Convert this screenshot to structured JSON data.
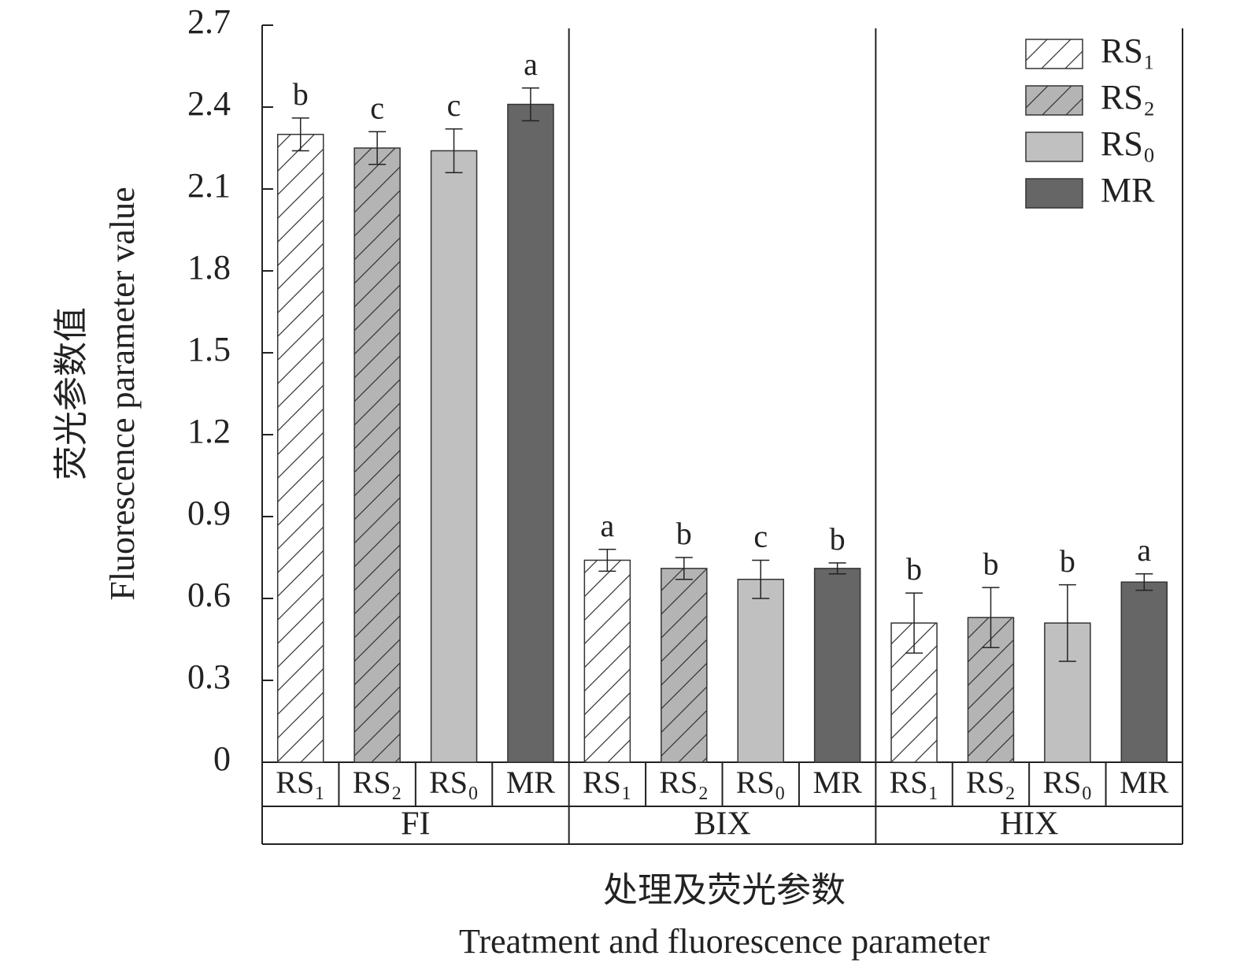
{
  "chart_data": {
    "type": "bar",
    "categories": [
      "FI",
      "BIX",
      "HIX"
    ],
    "series": [
      {
        "name": "RS₁",
        "color": "#ffffff",
        "hatch": true,
        "values": [
          2.3,
          0.74,
          0.51
        ],
        "errors": [
          0.06,
          0.04,
          0.11
        ],
        "letters": [
          "b",
          "a",
          "b"
        ]
      },
      {
        "name": "RS₂",
        "color": "#b4b4b4",
        "hatch": true,
        "values": [
          2.25,
          0.71,
          0.53
        ],
        "errors": [
          0.06,
          0.04,
          0.11
        ],
        "letters": [
          "c",
          "b",
          "b"
        ]
      },
      {
        "name": "RS₀",
        "color": "#c0c0c0",
        "hatch": false,
        "values": [
          2.24,
          0.67,
          0.51
        ],
        "errors": [
          0.08,
          0.07,
          0.14
        ],
        "letters": [
          "c",
          "c",
          "b"
        ]
      },
      {
        "name": "MR",
        "color": "#666666",
        "hatch": false,
        "values": [
          2.41,
          0.71,
          0.66
        ],
        "errors": [
          0.06,
          0.02,
          0.03
        ],
        "letters": [
          "a",
          "b",
          "a"
        ]
      }
    ],
    "y_label": [
      "荧光参数值",
      "Fluorescence parameter value"
    ],
    "x_label": [
      "处理及荧光参数",
      "Treatment and fluorescence parameter"
    ],
    "ylim": [
      0,
      2.7
    ],
    "yticks": [
      0,
      0.3,
      0.6,
      0.9,
      1.2,
      1.5,
      1.8,
      2.1,
      2.4,
      2.7
    ],
    "legend": "upper right"
  }
}
